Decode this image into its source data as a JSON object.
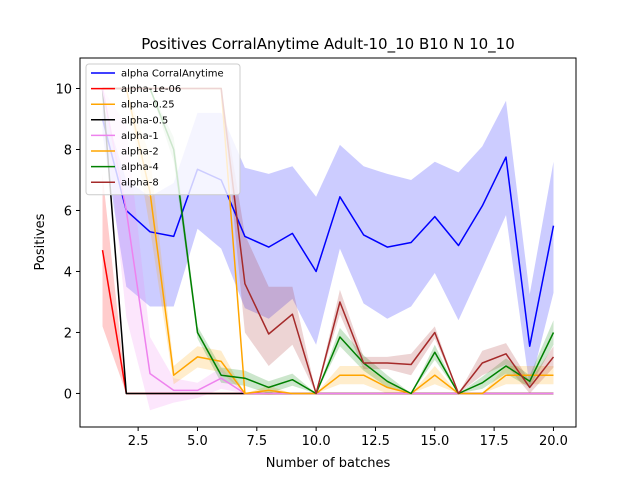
{
  "chart_data": {
    "type": "line",
    "title": "Positives CorralAnytime Adult-10_10 B10 N 10_10",
    "xlabel": "Number of batches",
    "ylabel": "Positives",
    "xlim": [
      0.05,
      20.95
    ],
    "ylim": [
      -1.1,
      11.0
    ],
    "xticks": [
      "2.5",
      "5.0",
      "7.5",
      "10.0",
      "12.5",
      "15.0",
      "17.5",
      "20.0"
    ],
    "xtick_values": [
      2.5,
      5.0,
      7.5,
      10.0,
      12.5,
      15.0,
      17.5,
      20.0
    ],
    "yticks": [
      "0",
      "2",
      "4",
      "6",
      "8",
      "10"
    ],
    "ytick_values": [
      0,
      2,
      4,
      6,
      8,
      10
    ],
    "grid": false,
    "legend_position": "top-left",
    "series": [
      {
        "name": "alpha CorralAnytime",
        "color": "#0000ff",
        "x": [
          1,
          2,
          3,
          4,
          5,
          6,
          7,
          8,
          9,
          10,
          11,
          12,
          13,
          14,
          15,
          16,
          17,
          18,
          19,
          20
        ],
        "y": [
          9.0,
          6.0,
          5.3,
          5.15,
          7.35,
          7.0,
          5.15,
          4.8,
          5.25,
          4.0,
          6.45,
          5.2,
          4.8,
          4.95,
          5.8,
          4.85,
          6.15,
          7.75,
          1.55,
          5.5
        ],
        "lower": [
          8.5,
          3.5,
          2.85,
          2.85,
          5.4,
          4.75,
          2.8,
          2.45,
          3.1,
          1.6,
          4.75,
          2.95,
          2.45,
          2.85,
          3.95,
          2.4,
          4.1,
          5.85,
          0.2,
          3.3
        ],
        "upper": [
          9.5,
          7.0,
          6.45,
          6.9,
          9.2,
          9.2,
          7.4,
          7.2,
          7.45,
          6.45,
          8.15,
          7.45,
          7.2,
          7.0,
          7.6,
          7.25,
          8.1,
          9.6,
          3.25,
          7.6
        ]
      },
      {
        "name": "alpha-1e-06",
        "color": "#ff0000",
        "x": [
          1,
          2,
          3,
          4,
          5,
          6,
          7,
          8,
          9,
          10,
          11,
          12,
          13,
          14,
          15,
          16,
          17,
          18,
          19,
          20
        ],
        "y": [
          4.7,
          0,
          0,
          0,
          0,
          0,
          0,
          0,
          0,
          0,
          0,
          0,
          0,
          0,
          0,
          0,
          0,
          0,
          0,
          0
        ],
        "lower": [
          2.2,
          0,
          0,
          0,
          0,
          0,
          0,
          0,
          0,
          0,
          0,
          0,
          0,
          0,
          0,
          0,
          0,
          0,
          0,
          0
        ],
        "upper": [
          7.2,
          0,
          0,
          0,
          0,
          0,
          0,
          0,
          0,
          0,
          0,
          0,
          0,
          0,
          0,
          0,
          0,
          0,
          0,
          0
        ]
      },
      {
        "name": "alpha-0.25",
        "color": "#ffa500",
        "x": [
          1,
          2,
          3,
          4,
          5,
          6,
          7,
          8,
          9,
          10,
          11,
          12,
          13,
          14,
          15,
          16,
          17,
          18,
          19,
          20
        ],
        "y": [
          10.0,
          10.0,
          10.0,
          10.0,
          10.0,
          10.0,
          0,
          0,
          0,
          0,
          0,
          0,
          0,
          0,
          0,
          0,
          0,
          0,
          0,
          0
        ],
        "lower": [
          10.0,
          10.0,
          10.0,
          10.0,
          10.0,
          10.0,
          0,
          0,
          0,
          0,
          0,
          0,
          0,
          0,
          0,
          0,
          0,
          0,
          0,
          0
        ],
        "upper": [
          10.0,
          10.0,
          10.0,
          10.0,
          10.0,
          10.0,
          0,
          0,
          0,
          0,
          0,
          0,
          0,
          0,
          0,
          0,
          0,
          0,
          0,
          0
        ]
      },
      {
        "name": "alpha-0.5",
        "color": "#000000",
        "x": [
          1,
          2,
          3,
          4,
          5,
          6,
          7,
          8,
          9,
          10,
          11,
          12,
          13,
          14,
          15,
          16,
          17,
          18,
          19,
          20
        ],
        "y": [
          10.0,
          0,
          0,
          0,
          0,
          0,
          0,
          0,
          0,
          0,
          0,
          0,
          0,
          0,
          0,
          0,
          0,
          0,
          0,
          0
        ],
        "lower": [
          10.0,
          0,
          0,
          0,
          0,
          0,
          0,
          0,
          0,
          0,
          0,
          0,
          0,
          0,
          0,
          0,
          0,
          0,
          0,
          0
        ],
        "upper": [
          10.0,
          0,
          0,
          0,
          0,
          0,
          0,
          0,
          0,
          0,
          0,
          0,
          0,
          0,
          0,
          0,
          0,
          0,
          0,
          0
        ]
      },
      {
        "name": "alpha-1",
        "color": "#ee82ee",
        "x": [
          1,
          2,
          3,
          4,
          5,
          6,
          7,
          8,
          9,
          10,
          11,
          12,
          13,
          14,
          15,
          16,
          17,
          18,
          19,
          20
        ],
        "y": [
          10.0,
          6.0,
          0.65,
          0.1,
          0.1,
          0.5,
          0,
          0,
          0,
          0,
          0,
          0,
          0,
          0,
          0,
          0,
          0,
          0,
          0,
          0
        ],
        "lower": [
          10.0,
          2.5,
          -0.55,
          -0.3,
          -0.15,
          0.15,
          0,
          0,
          0,
          0,
          0,
          0,
          0,
          0,
          0,
          0,
          0,
          0,
          0,
          0
        ],
        "upper": [
          10.0,
          8.8,
          1.85,
          0.5,
          0.35,
          0.85,
          0,
          0,
          0,
          0,
          0,
          0,
          0,
          0,
          0,
          0,
          0,
          0,
          0,
          0
        ]
      },
      {
        "name": "alpha-2",
        "color": "#ffa500",
        "x": [
          1,
          2,
          3,
          4,
          5,
          6,
          7,
          8,
          9,
          10,
          11,
          12,
          13,
          14,
          15,
          16,
          17,
          18,
          19,
          20
        ],
        "y": [
          10.0,
          10.0,
          6.6,
          0.6,
          1.2,
          1.05,
          0,
          0.1,
          0,
          0,
          0.6,
          0.6,
          0.2,
          0,
          0.6,
          0,
          0,
          0.6,
          0.6,
          0.6
        ],
        "lower": [
          10.0,
          10.0,
          5.4,
          0.3,
          0.85,
          0.7,
          0,
          -0.05,
          0,
          0,
          0.3,
          0.3,
          0,
          0,
          0.3,
          0,
          0,
          0.3,
          0.3,
          0.3
        ],
        "upper": [
          10.0,
          10.0,
          7.8,
          0.9,
          1.55,
          1.4,
          0,
          0.25,
          0,
          0,
          0.9,
          0.9,
          0.4,
          0,
          0.9,
          0,
          0,
          0.9,
          0.9,
          0.9
        ]
      },
      {
        "name": "alpha-4",
        "color": "#008000",
        "x": [
          1,
          2,
          3,
          4,
          5,
          6,
          7,
          8,
          9,
          10,
          11,
          12,
          13,
          14,
          15,
          16,
          17,
          18,
          19,
          20
        ],
        "y": [
          10.0,
          10.0,
          10.0,
          8.0,
          2.0,
          0.6,
          0.5,
          0.2,
          0.45,
          0,
          1.85,
          1.0,
          0.4,
          0,
          1.35,
          0,
          0.35,
          0.9,
          0.4,
          2.0
        ],
        "lower": [
          10.0,
          10.0,
          10.0,
          7.6,
          1.8,
          0.35,
          0.25,
          0,
          0.25,
          0,
          1.55,
          0.75,
          0.2,
          0,
          1.1,
          0,
          0.15,
          0.65,
          0.2,
          1.6
        ],
        "upper": [
          10.0,
          10.0,
          10.0,
          8.4,
          2.2,
          0.85,
          0.75,
          0.4,
          0.65,
          0,
          2.15,
          1.25,
          0.6,
          0,
          1.6,
          0,
          0.55,
          1.15,
          0.6,
          2.4
        ]
      },
      {
        "name": "alpha-8",
        "color": "#a52a2a",
        "x": [
          1,
          2,
          3,
          4,
          5,
          6,
          7,
          8,
          9,
          10,
          11,
          12,
          13,
          14,
          15,
          16,
          17,
          18,
          19,
          20
        ],
        "y": [
          10.0,
          10.0,
          10.0,
          10.0,
          10.0,
          10.0,
          3.6,
          1.95,
          2.6,
          0,
          3.0,
          1.0,
          1.0,
          0.95,
          2.0,
          0,
          1.0,
          1.3,
          0.2,
          1.2
        ],
        "lower": [
          10.0,
          10.0,
          10.0,
          10.0,
          10.0,
          10.0,
          2.0,
          0.9,
          1.6,
          0,
          2.6,
          0.8,
          0.8,
          0.6,
          1.8,
          0,
          0.6,
          0.95,
          0,
          0.85
        ],
        "upper": [
          10.0,
          10.0,
          10.0,
          10.0,
          10.0,
          10.0,
          5.2,
          3.5,
          3.5,
          0,
          3.4,
          1.2,
          1.2,
          1.3,
          2.2,
          0,
          1.4,
          1.65,
          0.4,
          1.55
        ]
      }
    ]
  }
}
